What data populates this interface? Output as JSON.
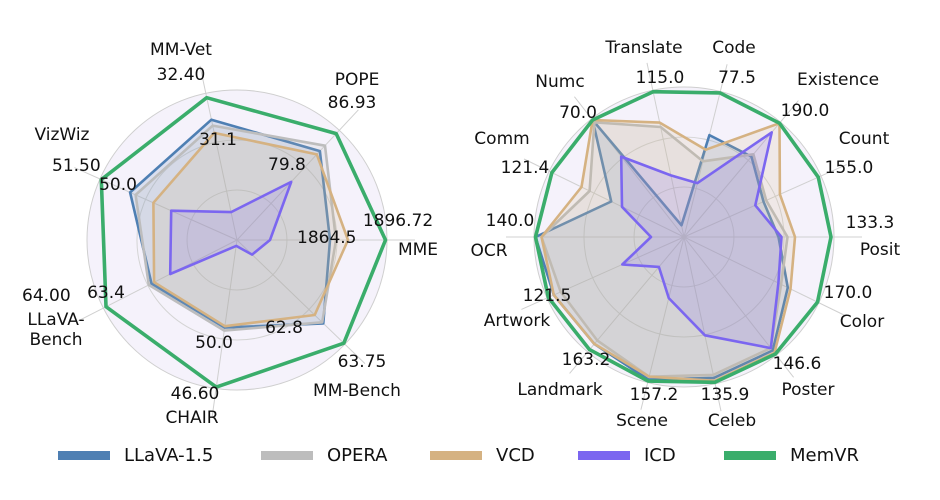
{
  "chart_data": [
    {
      "type": "radar",
      "title": "",
      "axes": [
        {
          "name": "MME",
          "label": [
            "MME"
          ],
          "max": "1896.72",
          "inner": "1864.5"
        },
        {
          "name": "MM-Bench",
          "label": [
            "MM-Bench"
          ],
          "max": "63.75",
          "inner": "62.8"
        },
        {
          "name": "CHAIR",
          "label": [
            "CHAIR"
          ],
          "max": "46.60",
          "inner": "50.0"
        },
        {
          "name": "LLaVA-Bench",
          "label": [
            "LLaVA-",
            "Bench"
          ],
          "max": "64.00",
          "inner": "63.4"
        },
        {
          "name": "VizWiz",
          "label": [
            "VizWiz"
          ],
          "max": "51.50",
          "inner": "50.0"
        },
        {
          "name": "MM-Vet",
          "label": [
            "MM-Vet"
          ],
          "max": "32.40",
          "inner": "31.1"
        },
        {
          "name": "POPE",
          "label": [
            "POPE"
          ],
          "max": "86.93",
          "inner": "79.8"
        }
      ],
      "series": [
        {
          "name": "LLaVA-1.5",
          "values": [
            0.62,
            0.8,
            0.59,
            0.64,
            0.78,
            0.82,
            0.81
          ]
        },
        {
          "name": "OPERA",
          "values": [
            0.66,
            0.79,
            0.61,
            0.66,
            0.74,
            0.78,
            0.86
          ]
        },
        {
          "name": "VCD",
          "values": [
            0.74,
            0.72,
            0.58,
            0.62,
            0.61,
            0.73,
            0.78
          ]
        },
        {
          "name": "ICD",
          "values": [
            0.22,
            0.14,
            0.04,
            0.5,
            0.48,
            0.19,
            0.53
          ]
        },
        {
          "name": "MemVR",
          "values": [
            0.99,
            0.99,
            0.99,
            0.98,
            0.99,
            0.97,
            0.97
          ]
        }
      ]
    },
    {
      "type": "radar",
      "title": "",
      "axes": [
        {
          "name": "Posit",
          "label": [
            "Posit"
          ],
          "max": "133.3"
        },
        {
          "name": "Color",
          "label": [
            "Color"
          ],
          "max": "170.0"
        },
        {
          "name": "Poster",
          "label": [
            "Poster"
          ],
          "max": "146.6"
        },
        {
          "name": "Celeb",
          "label": [
            "Celeb"
          ],
          "max": "135.9"
        },
        {
          "name": "Scene",
          "label": [
            "Scene"
          ],
          "max": "157.2"
        },
        {
          "name": "Landmark",
          "label": [
            "Landmark"
          ],
          "max": "163.2"
        },
        {
          "name": "Artwork",
          "label": [
            "Artwork"
          ],
          "max": "121.5"
        },
        {
          "name": "OCR",
          "label": [
            "OCR"
          ],
          "max": "140.0"
        },
        {
          "name": "Comm",
          "label": [
            "Comm"
          ],
          "max": "121.4"
        },
        {
          "name": "Numc",
          "label": [
            "Numc"
          ],
          "max": "70.0"
        },
        {
          "name": "Translate",
          "label": [
            "Translate"
          ],
          "max": "115.0"
        },
        {
          "name": "Code",
          "label": [
            "Code"
          ],
          "max": "77.5"
        },
        {
          "name": "Existence",
          "label": [
            "Existence"
          ],
          "max": "190.0"
        },
        {
          "name": "Count",
          "label": [
            "Count"
          ],
          "max": "155.0"
        }
      ],
      "series": [
        {
          "name": "LLaVA-1.5",
          "values": [
            0.63,
            0.77,
            0.96,
            0.96,
            0.98,
            0.93,
            0.95,
            0.99,
            0.54,
            0.99,
            0.08,
            0.7,
            0.7,
            0.58
          ]
        },
        {
          "name": "OPERA",
          "values": [
            0.69,
            0.72,
            0.94,
            0.94,
            0.96,
            0.9,
            0.9,
            0.95,
            0.7,
            0.97,
            0.75,
            0.52,
            0.72,
            0.6
          ]
        },
        {
          "name": "VCD",
          "values": [
            0.74,
            0.79,
            0.98,
            0.98,
            0.96,
            0.93,
            0.95,
            0.95,
            0.76,
            0.99,
            0.78,
            0.6,
            0.99,
            0.7
          ]
        },
        {
          "name": "ICD",
          "values": [
            0.65,
            0.7,
            0.94,
            0.67,
            0.42,
            0.26,
            0.45,
            0.22,
            0.46,
            0.68,
            0.42,
            0.37,
            0.91,
            0.52
          ]
        },
        {
          "name": "MemVR",
          "values": [
            0.98,
            0.99,
            0.99,
            0.99,
            0.99,
            0.98,
            0.99,
            0.99,
            0.98,
            0.99,
            0.99,
            0.99,
            0.99,
            0.98
          ]
        }
      ]
    }
  ],
  "legend": {
    "items": [
      {
        "name": "LLaVA-1.5",
        "color": "#4e7fb3"
      },
      {
        "name": "OPERA",
        "color": "#bdbdbd"
      },
      {
        "name": "VCD",
        "color": "#d5b282"
      },
      {
        "name": "ICD",
        "color": "#7b66f0"
      },
      {
        "name": "MemVR",
        "color": "#3aad6b"
      }
    ]
  }
}
